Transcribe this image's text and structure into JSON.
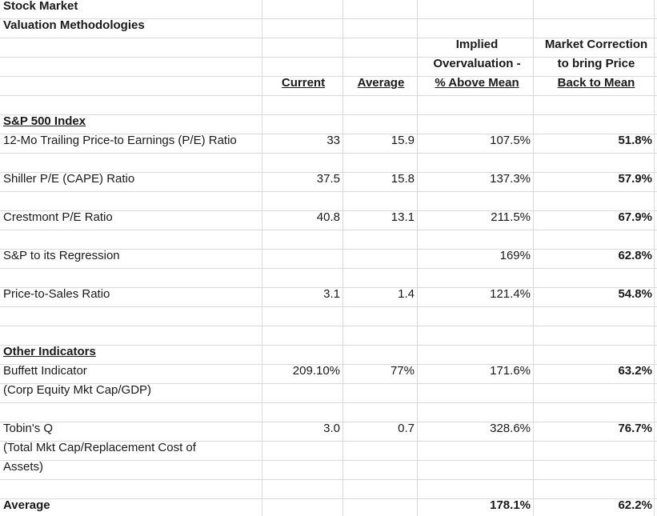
{
  "title": {
    "line1": "Stock Market",
    "line2": "Valuation Methodologies"
  },
  "headers": {
    "current": "Current",
    "average": "Average",
    "implied_line1": "Implied",
    "implied_line2": "Overvaluation -",
    "implied_line3": "% Above Mean",
    "correction_line1": "Market Correction",
    "correction_line2": "to bring Price",
    "correction_line3": "Back to Mean"
  },
  "sections": {
    "sp500": "S&P 500 Index",
    "other": "Other Indicators"
  },
  "rows": [
    {
      "label": "12-Mo Trailing Price-to Earnings (P/E) Ratio",
      "current": "33",
      "average": "15.9",
      "implied": "107.5%",
      "correction": "51.8%"
    },
    {
      "label": "Shiller P/E  (CAPE) Ratio",
      "current": "37.5",
      "average": "15.8",
      "implied": "137.3%",
      "correction": "57.9%"
    },
    {
      "label": "Crestmont P/E Ratio",
      "current": "40.8",
      "average": "13.1",
      "implied": "211.5%",
      "correction": "67.9%"
    },
    {
      "label": "S&P to its Regression",
      "current": "",
      "average": "",
      "implied": "169%",
      "correction": "62.8%"
    },
    {
      "label": "Price-to-Sales Ratio",
      "current": "3.1",
      "average": "1.4",
      "implied": "121.4%",
      "correction": "54.8%"
    },
    {
      "label": "Buffett Indicator",
      "sublabel": "(Corp Equity Mkt Cap/GDP)",
      "current": "209.10%",
      "average": "77%",
      "implied": "171.6%",
      "correction": "63.2%"
    },
    {
      "label": "Tobin's Q",
      "sublabel": "(Total Mkt Cap/Replacement Cost of",
      "sublabel2": "Assets)",
      "current": "3.0",
      "average": "0.7",
      "implied": "328.6%",
      "correction": "76.7%"
    }
  ],
  "summary": {
    "label": "Average",
    "implied": "178.1%",
    "correction": "62.2%"
  }
}
